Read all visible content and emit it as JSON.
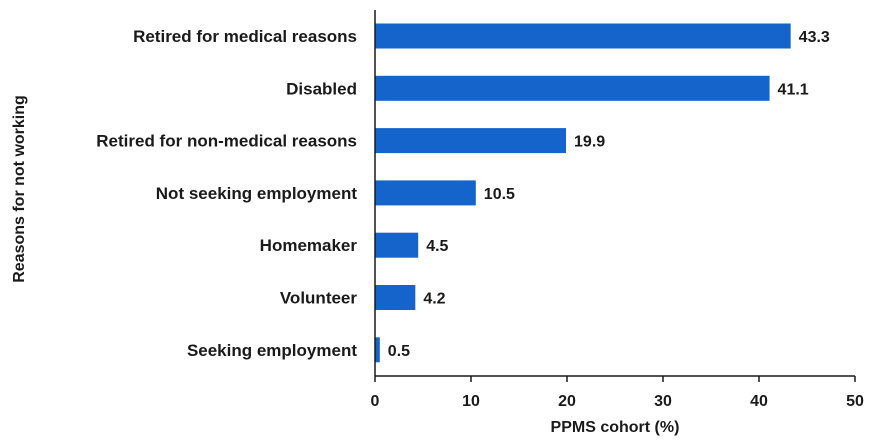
{
  "chart_data": {
    "type": "bar",
    "orientation": "horizontal",
    "categories": [
      "Retired for medical reasons",
      "Disabled",
      "Retired for non-medical reasons",
      "Not seeking employment",
      "Homemaker",
      "Volunteer",
      "Seeking employment"
    ],
    "values": [
      43.3,
      41.1,
      19.9,
      10.5,
      4.5,
      4.2,
      0.5
    ],
    "value_labels": [
      "43.3",
      "41.1",
      "19.9",
      "10.5",
      "4.5",
      "4.2",
      "0.5"
    ],
    "xlabel": "PPMS cohort (%)",
    "ylabel": "Reasons for not working",
    "xlim": [
      0,
      50
    ],
    "xticks": [
      0,
      10,
      20,
      30,
      40,
      50
    ],
    "xtick_labels": [
      "0",
      "10",
      "20",
      "30",
      "40",
      "50"
    ],
    "grid": false,
    "bar_color": "#1464cc"
  }
}
